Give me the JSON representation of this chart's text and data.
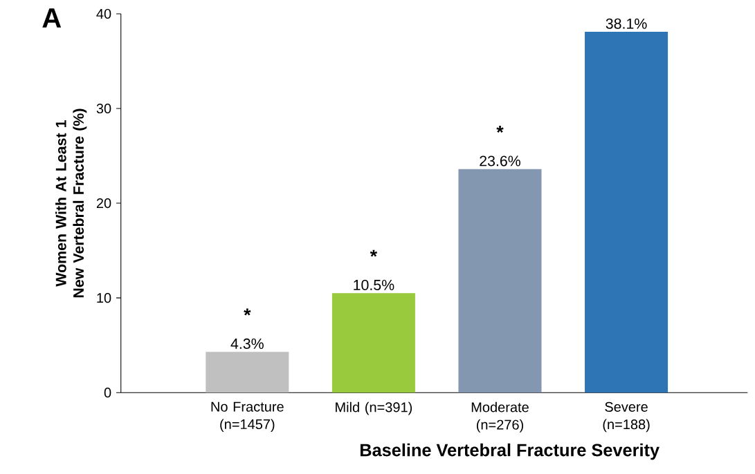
{
  "chart_data": {
    "type": "bar",
    "title": "A",
    "xlabel": "Baseline Vertebral Fracture Severity",
    "ylabel": "Women With At Least 1 New Vertebral Fracture (%)",
    "categories": [
      "No Fracture (n=1457)",
      "Mild (n=391)",
      "Moderate (n=276)",
      "Severe (n=188)"
    ],
    "values": [
      4.3,
      10.5,
      23.6,
      38.1
    ],
    "colors": [
      "#c0c0c0",
      "#99c93c",
      "#8497b0",
      "#2e75b6"
    ],
    "value_labels": [
      "4.3%",
      "10.5%",
      "23.6%",
      "38.1%"
    ],
    "ylim": [
      0,
      40
    ],
    "yticks": [
      0,
      10,
      20,
      30,
      40
    ],
    "grid": false,
    "annotations": [
      "*",
      "*",
      "*"
    ]
  }
}
